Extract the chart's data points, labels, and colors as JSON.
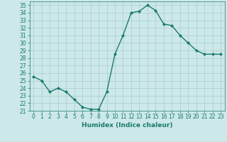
{
  "x": [
    0,
    1,
    2,
    3,
    4,
    5,
    6,
    7,
    8,
    9,
    10,
    11,
    12,
    13,
    14,
    15,
    16,
    17,
    18,
    19,
    20,
    21,
    22,
    23
  ],
  "y": [
    25.5,
    25.0,
    23.5,
    24.0,
    23.5,
    22.5,
    21.5,
    21.2,
    21.2,
    23.5,
    28.5,
    31.0,
    34.0,
    34.2,
    35.0,
    34.3,
    32.5,
    32.3,
    31.0,
    30.0,
    29.0,
    28.5,
    28.5,
    28.5
  ],
  "line_color": "#1a7a6e",
  "marker": "D",
  "marker_size": 2.2,
  "line_width": 1.0,
  "xlabel": "Humidex (Indice chaleur)",
  "xlim": [
    -0.5,
    23.5
  ],
  "ylim": [
    21.0,
    35.5
  ],
  "yticks": [
    21,
    22,
    23,
    24,
    25,
    26,
    27,
    28,
    29,
    30,
    31,
    32,
    33,
    34,
    35
  ],
  "xticks": [
    0,
    1,
    2,
    3,
    4,
    5,
    6,
    7,
    8,
    9,
    10,
    11,
    12,
    13,
    14,
    15,
    16,
    17,
    18,
    19,
    20,
    21,
    22,
    23
  ],
  "bg_color": "#cce8e8",
  "grid_color": "#aacccc",
  "line_border_color": "#1a7a6e",
  "label_color": "#1a7a6e",
  "tick_fontsize": 5.5,
  "xlabel_fontsize": 6.5
}
